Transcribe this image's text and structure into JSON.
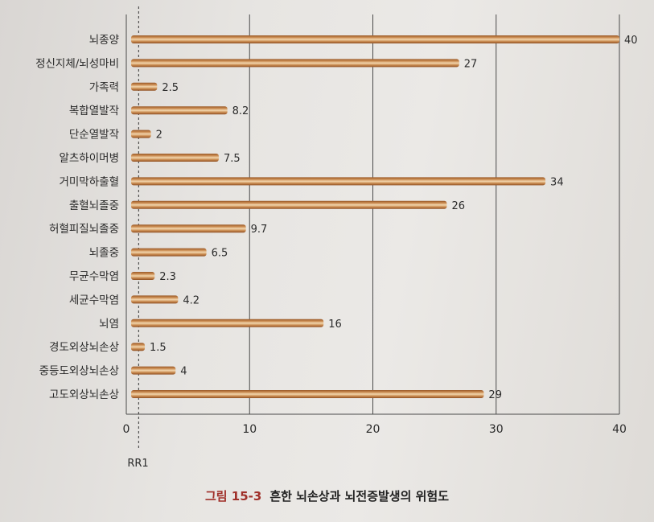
{
  "chart_data": {
    "type": "bar",
    "orientation": "horizontal",
    "categories": [
      "뇌종양",
      "정신지체/뇌성마비",
      "가족력",
      "복합열발작",
      "단순열발작",
      "알츠하이머병",
      "거미막하출혈",
      "출혈뇌졸중",
      "허혈피질뇌졸중",
      "뇌졸중",
      "무균수막염",
      "세균수막염",
      "뇌염",
      "경도외상뇌손상",
      "중등도외상뇌손상",
      "고도외상뇌손상"
    ],
    "values": [
      40,
      27,
      2.5,
      8.2,
      2,
      7.5,
      34,
      26,
      9.7,
      6.5,
      2.3,
      4.2,
      16,
      1.5,
      4,
      29
    ],
    "value_labels": [
      "40",
      "27",
      "2.5",
      "8.2",
      "2",
      "7.5",
      "34",
      "26",
      "9.7",
      "6.5",
      "2.3",
      "4.2",
      "16",
      "1.5",
      "4",
      "29"
    ],
    "xlim": [
      0,
      40
    ],
    "x_ticks": [
      "0",
      "10",
      "20",
      "30",
      "40"
    ],
    "reference_line": {
      "value": 1,
      "label": "RR1"
    },
    "grid": "vertical",
    "bar_color": "#c8874a",
    "title": "흔한 뇌손상과 뇌전증발생의 위험도"
  },
  "caption": {
    "figure_number": "그림 15-3",
    "title": "흔한 뇌손상과 뇌전증발생의 위험도"
  }
}
